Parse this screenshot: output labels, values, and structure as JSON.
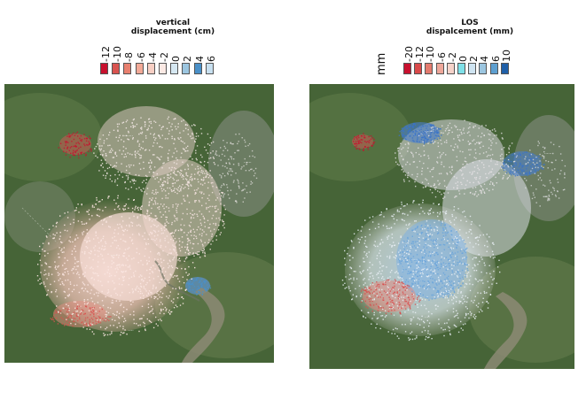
{
  "left_panel": {
    "legend": {
      "title_line1": "vertical",
      "title_line2": "displacement (cm)",
      "ticks": [
        "-12",
        "-10",
        "-8",
        "-6",
        "-4",
        "-2",
        "0",
        "2",
        "4",
        "6"
      ],
      "colors": [
        "#c8102e",
        "#d9534f",
        "#e8806f",
        "#f2a997",
        "#f7cfc4",
        "#fbe9e4",
        "#d6e8f2",
        "#9cc6e0",
        "#4a90c8",
        "#c8e0f0"
      ]
    },
    "map": {
      "style": "satellite",
      "overlay": "vertical displacement points"
    }
  },
  "right_panel": {
    "legend": {
      "title_line1": "LOS",
      "title_line2": "dispalcement (mm)",
      "unit": "mm",
      "ticks": [
        "-20",
        "-12",
        "-10",
        "-6",
        "-2",
        "0",
        "2",
        "4",
        "6",
        "10"
      ],
      "colors": [
        "#c8102e",
        "#d94a4a",
        "#e37b6e",
        "#eea79a",
        "#f6d3ca",
        "#7fe0e8",
        "#cfe4f1",
        "#9cc6e0",
        "#5d9fd0",
        "#1f5fa8"
      ]
    },
    "map": {
      "style": "satellite",
      "overlay": "LOS displacement points"
    }
  },
  "place_labels": [
    "·······",
    "······",
    "·····",
    "····"
  ]
}
